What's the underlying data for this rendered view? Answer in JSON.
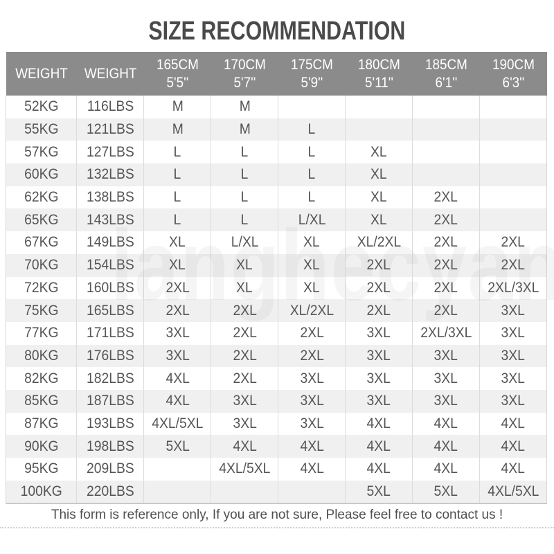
{
  "title": "SIZE RECOMMENDATION",
  "watermark": "langhecyan",
  "table": {
    "header_row": [
      {
        "line1": "WEIGHT",
        "line2": ""
      },
      {
        "line1": "WEIGHT",
        "line2": ""
      },
      {
        "line1": "165CM",
        "line2": "5'5''"
      },
      {
        "line1": "170CM",
        "line2": "5'7''"
      },
      {
        "line1": "175CM",
        "line2": "5'9''"
      },
      {
        "line1": "180CM",
        "line2": "5'11''"
      },
      {
        "line1": "185CM",
        "line2": "6'1''"
      },
      {
        "line1": "190CM",
        "line2": "6'3''"
      }
    ],
    "rows": [
      {
        "kg": "52KG",
        "lbs": "116LBS",
        "sizes": [
          "M",
          "M",
          "",
          "",
          "",
          ""
        ]
      },
      {
        "kg": "55KG",
        "lbs": "121LBS",
        "sizes": [
          "M",
          "M",
          "L",
          "",
          "",
          ""
        ]
      },
      {
        "kg": "57KG",
        "lbs": "127LBS",
        "sizes": [
          "L",
          "L",
          "L",
          "XL",
          "",
          ""
        ]
      },
      {
        "kg": "60KG",
        "lbs": "132LBS",
        "sizes": [
          "L",
          "L",
          "L",
          "XL",
          "",
          ""
        ]
      },
      {
        "kg": "62KG",
        "lbs": "138LBS",
        "sizes": [
          "L",
          "L",
          "L",
          "XL",
          "2XL",
          ""
        ]
      },
      {
        "kg": "65KG",
        "lbs": "143LBS",
        "sizes": [
          "L",
          "L",
          "L/XL",
          "XL",
          "2XL",
          ""
        ]
      },
      {
        "kg": "67KG",
        "lbs": "149LBS",
        "sizes": [
          "XL",
          "L/XL",
          "XL",
          "XL/2XL",
          "2XL",
          "2XL"
        ]
      },
      {
        "kg": "70KG",
        "lbs": "154LBS",
        "sizes": [
          "XL",
          "XL",
          "XL",
          "2XL",
          "2XL",
          "2XL"
        ]
      },
      {
        "kg": "72KG",
        "lbs": "160LBS",
        "sizes": [
          "2XL",
          "XL",
          "XL",
          "2XL",
          "2XL",
          "2XL/3XL"
        ]
      },
      {
        "kg": "75KG",
        "lbs": "165LBS",
        "sizes": [
          "2XL",
          "2XL",
          "XL/2XL",
          "2XL",
          "2XL",
          "3XL"
        ]
      },
      {
        "kg": "77KG",
        "lbs": "171LBS",
        "sizes": [
          "3XL",
          "2XL",
          "2XL",
          "3XL",
          "2XL/3XL",
          "3XL"
        ]
      },
      {
        "kg": "80KG",
        "lbs": "176LBS",
        "sizes": [
          "3XL",
          "2XL",
          "2XL",
          "3XL",
          "3XL",
          "3XL"
        ]
      },
      {
        "kg": "82KG",
        "lbs": "182LBS",
        "sizes": [
          "4XL",
          "2XL",
          "3XL",
          "3XL",
          "3XL",
          "3XL"
        ]
      },
      {
        "kg": "85KG",
        "lbs": "187LBS",
        "sizes": [
          "4XL",
          "3XL",
          "3XL",
          "3XL",
          "3XL",
          "3XL"
        ]
      },
      {
        "kg": "87KG",
        "lbs": "193LBS",
        "sizes": [
          "4XL/5XL",
          "3XL",
          "3XL",
          "4XL",
          "4XL",
          "4XL"
        ]
      },
      {
        "kg": "90KG",
        "lbs": "198LBS",
        "sizes": [
          "5XL",
          "4XL",
          "4XL",
          "4XL",
          "4XL",
          "4XL"
        ]
      },
      {
        "kg": "95KG",
        "lbs": "209LBS",
        "sizes": [
          "",
          "4XL/5XL",
          "4XL",
          "4XL",
          "4XL",
          "4XL"
        ]
      },
      {
        "kg": "100KG",
        "lbs": "220LBS",
        "sizes": [
          "",
          "",
          "",
          "5XL",
          "5XL",
          "4XL/5XL"
        ]
      }
    ]
  },
  "footer": {
    "note": "This form is reference only, If you are not sure, Please feel free to contact us !"
  },
  "colors": {
    "header_bg": "#8b8b8b",
    "header_text": "#ffffff",
    "zebra_row": "#f0f0f0",
    "cell_text": "#555555",
    "title_text": "#4a4a4a",
    "column_line": "#dcdcdc",
    "divider": "#cfcfcf"
  },
  "chart_data": {
    "type": "table",
    "title": "SIZE RECOMMENDATION",
    "columns": [
      "WEIGHT",
      "WEIGHT",
      "165CM 5'5''",
      "170CM 5'7''",
      "175CM 5'9''",
      "180CM 5'11''",
      "185CM 6'1''",
      "190CM 6'3''"
    ],
    "rows": [
      [
        "52KG",
        "116LBS",
        "M",
        "M",
        "",
        "",
        "",
        ""
      ],
      [
        "55KG",
        "121LBS",
        "M",
        "M",
        "L",
        "",
        "",
        ""
      ],
      [
        "57KG",
        "127LBS",
        "L",
        "L",
        "L",
        "XL",
        "",
        ""
      ],
      [
        "60KG",
        "132LBS",
        "L",
        "L",
        "L",
        "XL",
        "",
        ""
      ],
      [
        "62KG",
        "138LBS",
        "L",
        "L",
        "L",
        "XL",
        "2XL",
        ""
      ],
      [
        "65KG",
        "143LBS",
        "L",
        "L",
        "L/XL",
        "XL",
        "2XL",
        ""
      ],
      [
        "67KG",
        "149LBS",
        "XL",
        "L/XL",
        "XL",
        "XL/2XL",
        "2XL",
        "2XL"
      ],
      [
        "70KG",
        "154LBS",
        "XL",
        "XL",
        "XL",
        "2XL",
        "2XL",
        "2XL"
      ],
      [
        "72KG",
        "160LBS",
        "2XL",
        "XL",
        "XL",
        "2XL",
        "2XL",
        "2XL/3XL"
      ],
      [
        "75KG",
        "165LBS",
        "2XL",
        "2XL",
        "XL/2XL",
        "2XL",
        "2XL",
        "3XL"
      ],
      [
        "77KG",
        "171LBS",
        "3XL",
        "2XL",
        "2XL",
        "3XL",
        "2XL/3XL",
        "3XL"
      ],
      [
        "80KG",
        "176LBS",
        "3XL",
        "2XL",
        "2XL",
        "3XL",
        "3XL",
        "3XL"
      ],
      [
        "82KG",
        "182LBS",
        "4XL",
        "2XL",
        "3XL",
        "3XL",
        "3XL",
        "3XL"
      ],
      [
        "85KG",
        "187LBS",
        "4XL",
        "3XL",
        "3XL",
        "3XL",
        "3XL",
        "3XL"
      ],
      [
        "87KG",
        "193LBS",
        "4XL/5XL",
        "3XL",
        "3XL",
        "4XL",
        "4XL",
        "4XL"
      ],
      [
        "90KG",
        "198LBS",
        "5XL",
        "4XL",
        "4XL",
        "4XL",
        "4XL",
        "4XL"
      ],
      [
        "95KG",
        "209LBS",
        "",
        "4XL/5XL",
        "4XL",
        "4XL",
        "4XL",
        "4XL"
      ],
      [
        "100KG",
        "220LBS",
        "",
        "",
        "",
        "5XL",
        "5XL",
        "4XL/5XL"
      ]
    ]
  }
}
